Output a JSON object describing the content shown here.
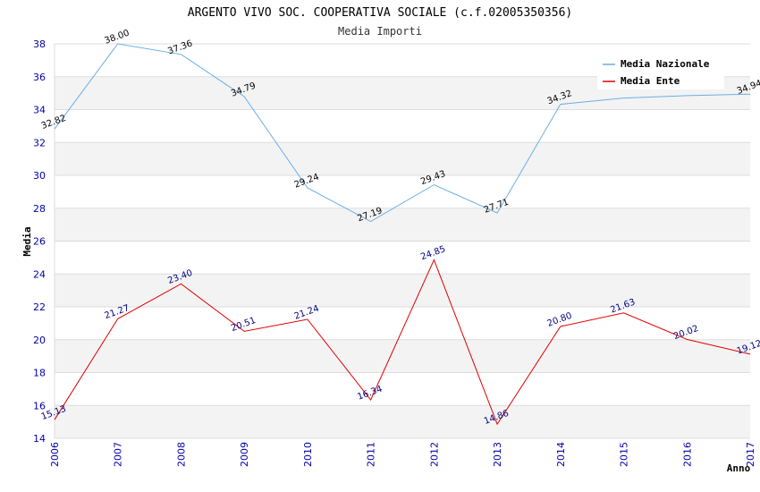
{
  "chart_data": {
    "type": "line",
    "title": "ARGENTO VIVO SOC. COOPERATIVA SOCIALE (c.f.02005350356)",
    "subtitle": "Media Importi",
    "xlabel": "Anno",
    "ylabel": "Media",
    "ylim": [
      14,
      38
    ],
    "ytick_step": 2,
    "grid": true,
    "legend_position": "top-right",
    "x": [
      "2006",
      "2007",
      "2008",
      "2009",
      "2010",
      "2011",
      "2012",
      "2013",
      "2014",
      "2015",
      "2016",
      "2017"
    ],
    "series": [
      {
        "name": "Media Nazionale",
        "color": "#6aaee6",
        "values": [
          32.82,
          38.0,
          37.36,
          34.79,
          29.24,
          27.19,
          29.43,
          27.71,
          34.32,
          34.7,
          34.85,
          34.94
        ],
        "labels": [
          "32.82",
          "38.00",
          "37.36",
          "34.79",
          "29.24",
          "27.19",
          "29.43",
          "27.71",
          "34.32",
          "",
          "",
          "34.94"
        ]
      },
      {
        "name": "Media Ente",
        "color": "#e00000",
        "values": [
          15.13,
          21.27,
          23.4,
          20.51,
          21.24,
          16.34,
          24.85,
          14.86,
          20.8,
          21.63,
          20.02,
          19.12
        ],
        "labels": [
          "15.13",
          "21.27",
          "23.40",
          "20.51",
          "21.24",
          "16.34",
          "24.85",
          "14.86",
          "20.80",
          "21.63",
          "20.02",
          "19.12"
        ]
      }
    ]
  }
}
